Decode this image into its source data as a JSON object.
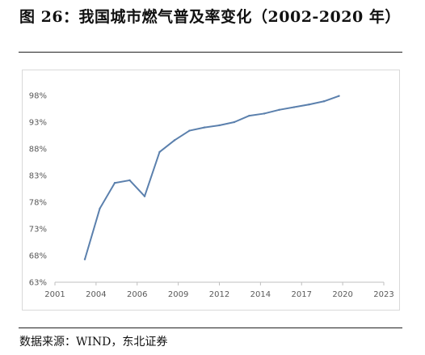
{
  "figure": {
    "title": "图  26：我国城市燃气普及率变化（2002-2020 年）",
    "source": "数据来源：WIND，东北证券"
  },
  "chart_data": {
    "type": "line",
    "series": [
      {
        "color": "#5b80ad",
        "x": [
          2003,
          2004,
          2005,
          2006,
          2007,
          2008,
          2009,
          2010,
          2011,
          2012,
          2013,
          2014,
          2015,
          2016,
          2017,
          2018,
          2019,
          2020
        ],
        "values": [
          67.3,
          76.8,
          81.6,
          82.1,
          79.1,
          87.4,
          89.6,
          91.4,
          92.0,
          92.4,
          93.0,
          94.2,
          94.6,
          95.3,
          95.8,
          96.3,
          96.9,
          97.9
        ]
      }
    ],
    "x_tick_labels": [
      "2001",
      "2004",
      "2006",
      "2009",
      "2012",
      "2014",
      "2017",
      "2020",
      "2023"
    ],
    "y_tick_labels": [
      "63%",
      "68%",
      "73%",
      "78%",
      "83%",
      "88%",
      "93%",
      "98%"
    ],
    "xlim": [
      2001,
      2023
    ],
    "ylim": [
      63,
      98
    ],
    "xlabel": "",
    "ylabel": "",
    "grid": false,
    "legend": "none"
  }
}
